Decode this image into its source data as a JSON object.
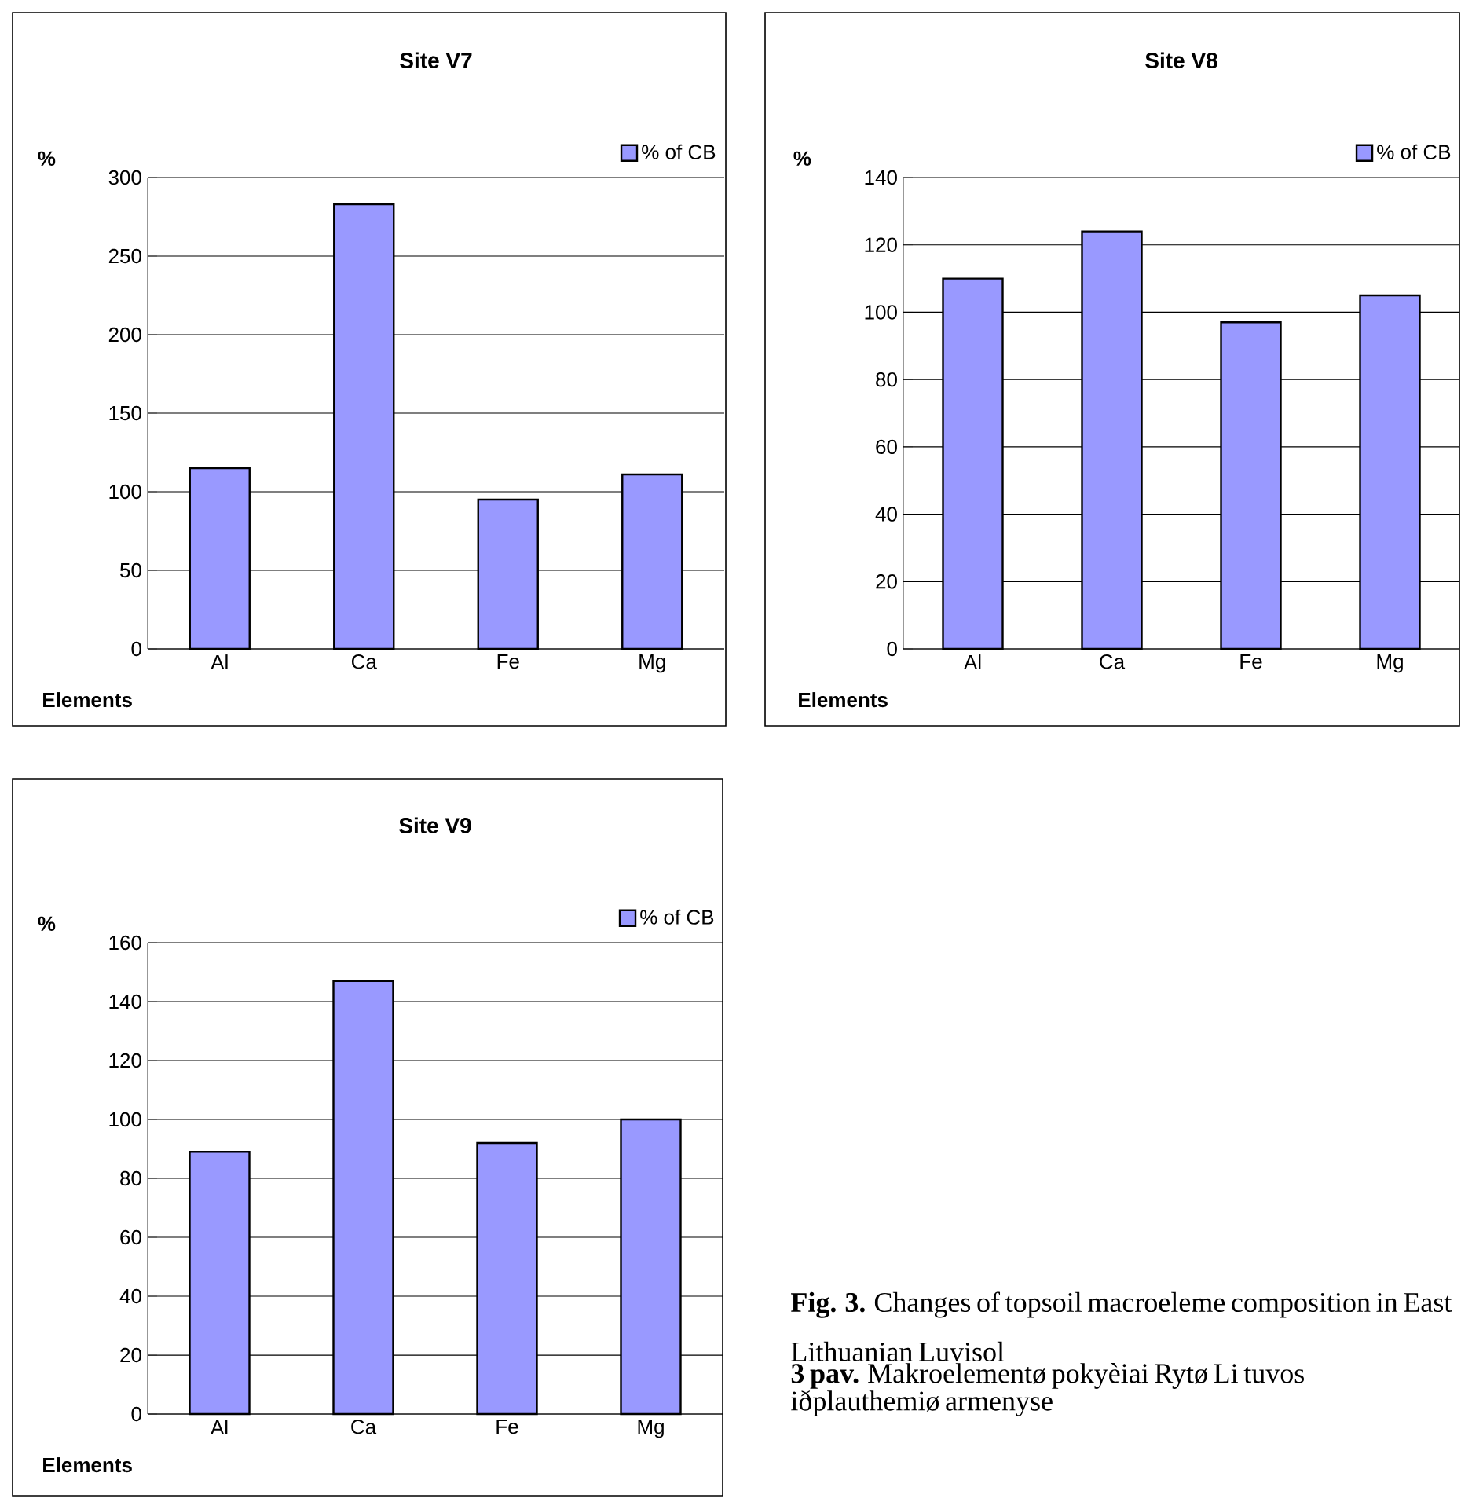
{
  "chart_data": [
    {
      "type": "bar",
      "title": "Site V7",
      "xlabel": "Elements",
      "ylabel": "%",
      "categories": [
        "Al",
        "Ca",
        "Fe",
        "Mg"
      ],
      "series": [
        {
          "name": "% of CB",
          "color": "#9999ff",
          "values": [
            115,
            283,
            95,
            111
          ]
        }
      ],
      "ylim": [
        0,
        300
      ],
      "yticks": [
        0,
        50,
        100,
        150,
        200,
        250,
        300
      ],
      "grid": "y",
      "legend": "top right"
    },
    {
      "type": "bar",
      "title": "Site V8",
      "xlabel": "Elements",
      "ylabel": "%",
      "categories": [
        "Al",
        "Ca",
        "Fe",
        "Mg"
      ],
      "series": [
        {
          "name": "% of CB",
          "color": "#9999ff",
          "values": [
            110,
            124,
            97,
            105
          ]
        }
      ],
      "ylim": [
        0,
        140
      ],
      "yticks": [
        0,
        20,
        40,
        60,
        80,
        100,
        120,
        140
      ],
      "grid": "y",
      "legend": "top right"
    },
    {
      "type": "bar",
      "title": "Site V9",
      "xlabel": "Elements",
      "ylabel": "%",
      "categories": [
        "Al",
        "Ca",
        "Fe",
        "Mg"
      ],
      "series": [
        {
          "name": "% of CB",
          "color": "#9999ff",
          "values": [
            89,
            147,
            92,
            100
          ]
        }
      ],
      "ylim": [
        0,
        160
      ],
      "yticks": [
        0,
        20,
        40,
        60,
        80,
        100,
        120,
        140,
        160
      ],
      "grid": "y",
      "legend": "top right",
      "annotations": [
        "**Fig. 3.** Changes of topsoil macroeleme composition in East Lithuanian Luvisol",
        "**3 pav.** Makroelementø pokyèiai Rytø Li tuvos iðplauthemiø armenyse"
      ]
    }
  ]
}
